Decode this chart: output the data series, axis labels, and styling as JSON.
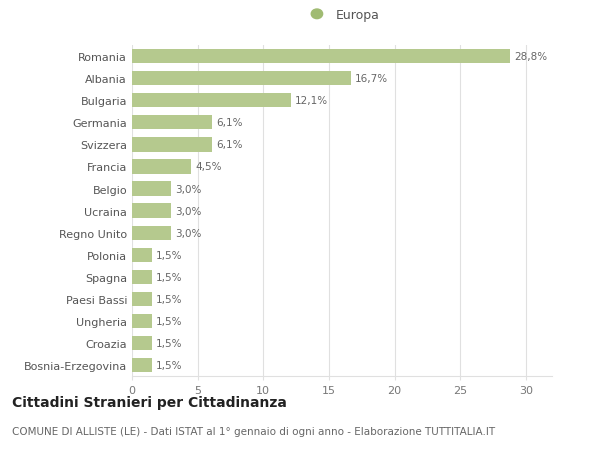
{
  "categories": [
    "Bosnia-Erzegovina",
    "Croazia",
    "Ungheria",
    "Paesi Bassi",
    "Spagna",
    "Polonia",
    "Regno Unito",
    "Ucraina",
    "Belgio",
    "Francia",
    "Svizzera",
    "Germania",
    "Bulgaria",
    "Albania",
    "Romania"
  ],
  "values": [
    1.5,
    1.5,
    1.5,
    1.5,
    1.5,
    1.5,
    3.0,
    3.0,
    3.0,
    4.5,
    6.1,
    6.1,
    12.1,
    16.7,
    28.8
  ],
  "labels": [
    "1,5%",
    "1,5%",
    "1,5%",
    "1,5%",
    "1,5%",
    "1,5%",
    "3,0%",
    "3,0%",
    "3,0%",
    "4,5%",
    "6,1%",
    "6,1%",
    "12,1%",
    "16,7%",
    "28,8%"
  ],
  "bar_color": "#b5c98e",
  "legend_color": "#a0bb72",
  "legend_label": "Europa",
  "title": "Cittadini Stranieri per Cittadinanza",
  "subtitle": "COMUNE DI ALLISTE (LE) - Dati ISTAT al 1° gennaio di ogni anno - Elaborazione TUTTITALIA.IT",
  "xlim": [
    0,
    32
  ],
  "xticks": [
    0,
    5,
    10,
    15,
    20,
    25,
    30
  ],
  "background_color": "#ffffff",
  "grid_color": "#e0e0e0",
  "title_fontsize": 10,
  "subtitle_fontsize": 7.5,
  "label_fontsize": 7.5,
  "tick_fontsize": 8,
  "ytick_fontsize": 8
}
